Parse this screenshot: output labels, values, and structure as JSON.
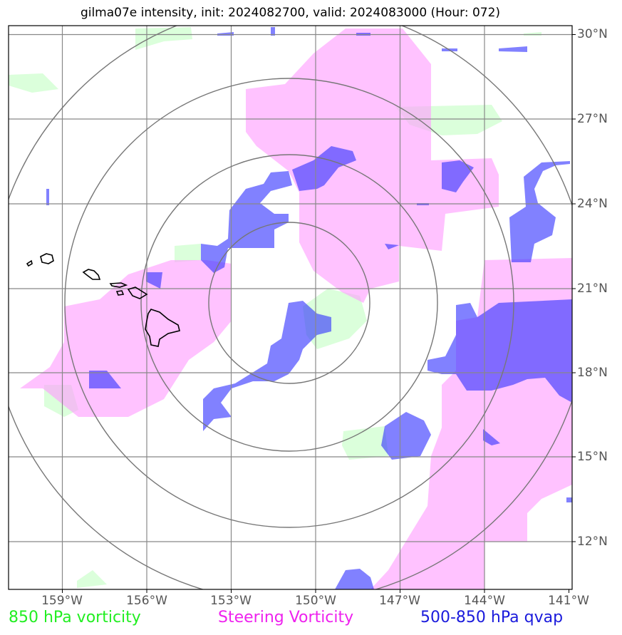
{
  "title": "gilma07e intensity, init: 2024082700, valid: 2024083000 (Hour: 072)",
  "legend": {
    "vort850": "850 hPa vorticity",
    "steering": "Steering Vorticity",
    "qvap": "500-850 hPa qvap"
  },
  "colors": {
    "vort850": "#ccffcc",
    "steering": "#ff99ff",
    "qvap": "#3333ff",
    "grid": "#888888",
    "rings": "#777777",
    "coast": "#000000"
  },
  "lat_labels": [
    "30°N",
    "27°N",
    "24°N",
    "21°N",
    "18°N",
    "15°N",
    "12°N"
  ],
  "lon_labels": [
    "159°W",
    "156°W",
    "153°W",
    "150°W",
    "147°W",
    "144°W",
    "141°W"
  ],
  "map": {
    "center": {
      "lon": -151.0,
      "lat": 20.5
    },
    "range_rings": 4,
    "lon_range": [
      -161,
      -141
    ],
    "lat_range": [
      10.5,
      30.5
    ]
  }
}
